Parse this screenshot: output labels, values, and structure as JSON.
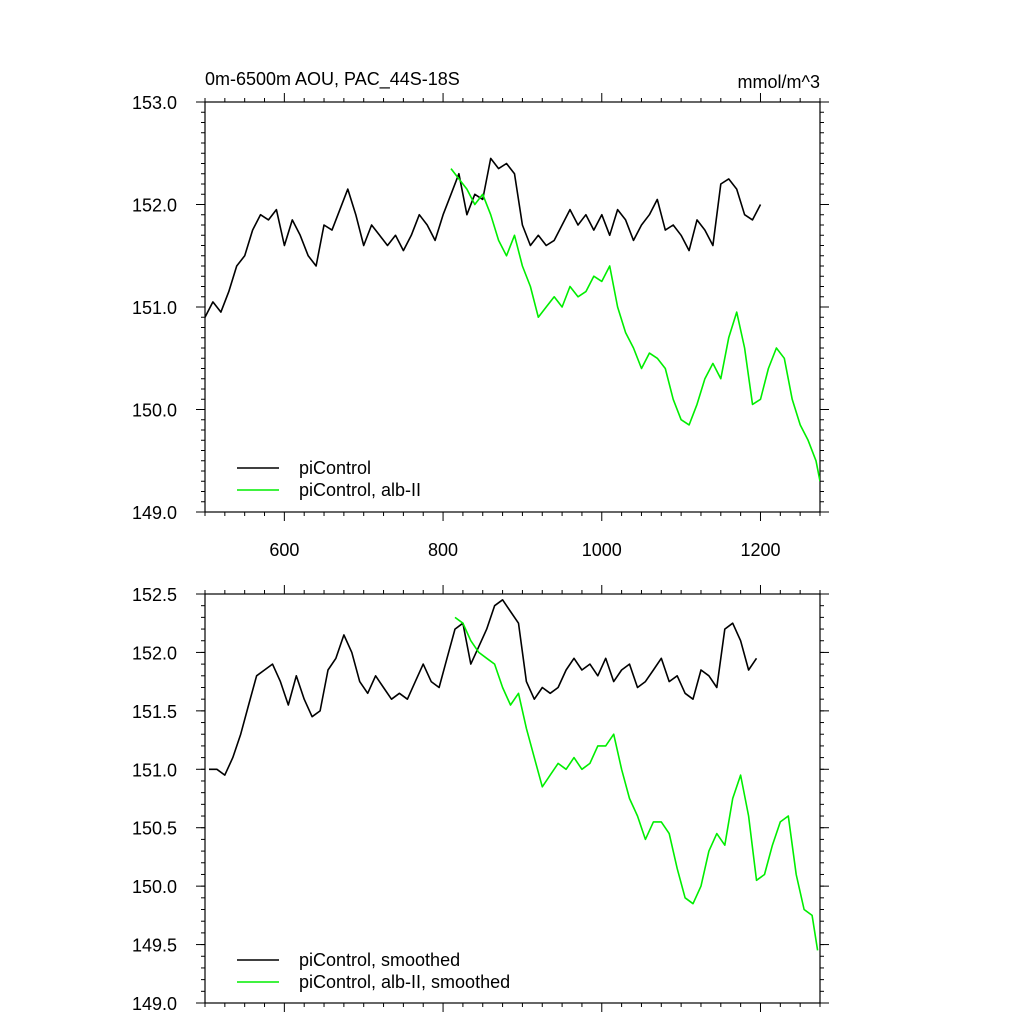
{
  "chart_data": [
    {
      "type": "line",
      "title": "0m-6500m AOU, PAC_44S-18S",
      "units": "mmol/m^3",
      "xlim": [
        500,
        1275
      ],
      "ylim": [
        149.0,
        153.0
      ],
      "x_ticks": [
        600,
        800,
        1000,
        1200
      ],
      "y_ticks": [
        149.0,
        150.0,
        151.0,
        152.0,
        153.0
      ],
      "x_tick_labels": [
        "600",
        "800",
        "1000",
        "1200"
      ],
      "y_tick_labels": [
        "149.0",
        "150.0",
        "151.0",
        "152.0",
        "153.0"
      ],
      "legend": "bottom-left",
      "series": [
        {
          "name": "piControl",
          "color": "#000000",
          "x": [
            500,
            510,
            520,
            530,
            540,
            550,
            560,
            570,
            580,
            590,
            600,
            610,
            620,
            630,
            640,
            650,
            660,
            670,
            680,
            690,
            700,
            710,
            720,
            730,
            740,
            750,
            760,
            770,
            780,
            790,
            800,
            810,
            820,
            830,
            840,
            850,
            860,
            870,
            880,
            890,
            900,
            910,
            920,
            930,
            940,
            950,
            960,
            970,
            980,
            990,
            1000,
            1010,
            1020,
            1030,
            1040,
            1050,
            1060,
            1070,
            1080,
            1090,
            1100,
            1110,
            1120,
            1130,
            1140,
            1150,
            1160,
            1170,
            1180,
            1190,
            1200
          ],
          "y": [
            150.9,
            151.05,
            150.95,
            151.15,
            151.4,
            151.5,
            151.75,
            151.9,
            151.85,
            151.95,
            151.6,
            151.85,
            151.7,
            151.5,
            151.4,
            151.8,
            151.75,
            151.95,
            152.15,
            151.9,
            151.6,
            151.8,
            151.7,
            151.6,
            151.7,
            151.55,
            151.7,
            151.9,
            151.8,
            151.65,
            151.9,
            152.1,
            152.3,
            151.9,
            152.1,
            152.05,
            152.45,
            152.35,
            152.4,
            152.3,
            151.8,
            151.6,
            151.7,
            151.6,
            151.65,
            151.8,
            151.95,
            151.8,
            151.9,
            151.75,
            151.9,
            151.7,
            151.95,
            151.85,
            151.65,
            151.8,
            151.9,
            152.05,
            151.75,
            151.8,
            151.7,
            151.55,
            151.85,
            151.75,
            151.6,
            152.2,
            152.25,
            152.15,
            151.9,
            151.85,
            152.0
          ]
        },
        {
          "name": "piControl, alb-II",
          "color": "#00ee00",
          "x": [
            810,
            820,
            830,
            840,
            850,
            860,
            870,
            880,
            890,
            900,
            910,
            920,
            930,
            940,
            950,
            960,
            970,
            980,
            990,
            1000,
            1010,
            1020,
            1030,
            1040,
            1050,
            1060,
            1070,
            1080,
            1090,
            1100,
            1110,
            1120,
            1130,
            1140,
            1150,
            1160,
            1170,
            1180,
            1190,
            1200,
            1210,
            1220,
            1230,
            1240,
            1250,
            1260,
            1270,
            1275
          ],
          "y": [
            152.35,
            152.25,
            152.15,
            152.0,
            152.1,
            151.9,
            151.65,
            151.5,
            151.7,
            151.4,
            151.2,
            150.9,
            151.0,
            151.1,
            151.0,
            151.2,
            151.1,
            151.15,
            151.3,
            151.25,
            151.4,
            151.0,
            150.75,
            150.6,
            150.4,
            150.55,
            150.5,
            150.4,
            150.1,
            149.9,
            149.85,
            150.05,
            150.3,
            150.45,
            150.3,
            150.7,
            150.95,
            150.6,
            150.05,
            150.1,
            150.4,
            150.6,
            150.5,
            150.1,
            149.85,
            149.7,
            149.5,
            149.3
          ]
        }
      ]
    },
    {
      "type": "line",
      "xlim": [
        500,
        1275
      ],
      "ylim": [
        149.0,
        152.5
      ],
      "x_ticks": [
        600,
        800,
        1000,
        1200
      ],
      "y_ticks": [
        149.0,
        149.5,
        150.0,
        150.5,
        151.0,
        151.5,
        152.0,
        152.5
      ],
      "y_tick_labels": [
        "149.0",
        "149.5",
        "150.0",
        "150.5",
        "151.0",
        "151.5",
        "152.0",
        "152.5"
      ],
      "legend": "bottom-left",
      "series": [
        {
          "name": "piControl, smoothed",
          "color": "#000000",
          "x": [
            505,
            515,
            525,
            535,
            545,
            555,
            565,
            575,
            585,
            595,
            605,
            615,
            625,
            635,
            645,
            655,
            665,
            675,
            685,
            695,
            705,
            715,
            725,
            735,
            745,
            755,
            765,
            775,
            785,
            795,
            805,
            815,
            825,
            835,
            845,
            855,
            865,
            875,
            885,
            895,
            905,
            915,
            925,
            935,
            945,
            955,
            965,
            975,
            985,
            995,
            1005,
            1015,
            1025,
            1035,
            1045,
            1055,
            1065,
            1075,
            1085,
            1095,
            1105,
            1115,
            1125,
            1135,
            1145,
            1155,
            1165,
            1175,
            1185,
            1195
          ],
          "y": [
            151.0,
            151.0,
            150.95,
            151.1,
            151.3,
            151.55,
            151.8,
            151.85,
            151.9,
            151.75,
            151.55,
            151.8,
            151.6,
            151.45,
            151.5,
            151.85,
            151.95,
            152.15,
            152.0,
            151.75,
            151.65,
            151.8,
            151.7,
            151.6,
            151.65,
            151.6,
            151.75,
            151.9,
            151.75,
            151.7,
            151.95,
            152.2,
            152.25,
            151.9,
            152.05,
            152.2,
            152.4,
            152.45,
            152.35,
            152.25,
            151.75,
            151.6,
            151.7,
            151.65,
            151.7,
            151.85,
            151.95,
            151.85,
            151.9,
            151.8,
            151.95,
            151.75,
            151.85,
            151.9,
            151.7,
            151.75,
            151.85,
            151.95,
            151.75,
            151.8,
            151.65,
            151.6,
            151.85,
            151.8,
            151.7,
            152.2,
            152.25,
            152.1,
            151.85,
            151.95
          ]
        },
        {
          "name": "piControl, alb-II, smoothed",
          "color": "#00ee00",
          "x": [
            815,
            825,
            835,
            845,
            855,
            865,
            875,
            885,
            895,
            905,
            915,
            925,
            935,
            945,
            955,
            965,
            975,
            985,
            995,
            1005,
            1015,
            1025,
            1035,
            1045,
            1055,
            1065,
            1075,
            1085,
            1095,
            1105,
            1115,
            1125,
            1135,
            1145,
            1155,
            1165,
            1175,
            1185,
            1195,
            1205,
            1215,
            1225,
            1235,
            1245,
            1255,
            1265,
            1272
          ],
          "y": [
            152.3,
            152.25,
            152.1,
            152.0,
            151.95,
            151.9,
            151.7,
            151.55,
            151.65,
            151.35,
            151.1,
            150.85,
            150.95,
            151.05,
            151.0,
            151.1,
            151.0,
            151.05,
            151.2,
            151.2,
            151.3,
            151.0,
            150.75,
            150.6,
            150.4,
            150.55,
            150.55,
            150.45,
            150.15,
            149.9,
            149.85,
            150.0,
            150.3,
            150.45,
            150.35,
            150.75,
            150.95,
            150.6,
            150.05,
            150.1,
            150.35,
            150.55,
            150.6,
            150.1,
            149.8,
            149.75,
            149.45
          ]
        }
      ]
    }
  ]
}
